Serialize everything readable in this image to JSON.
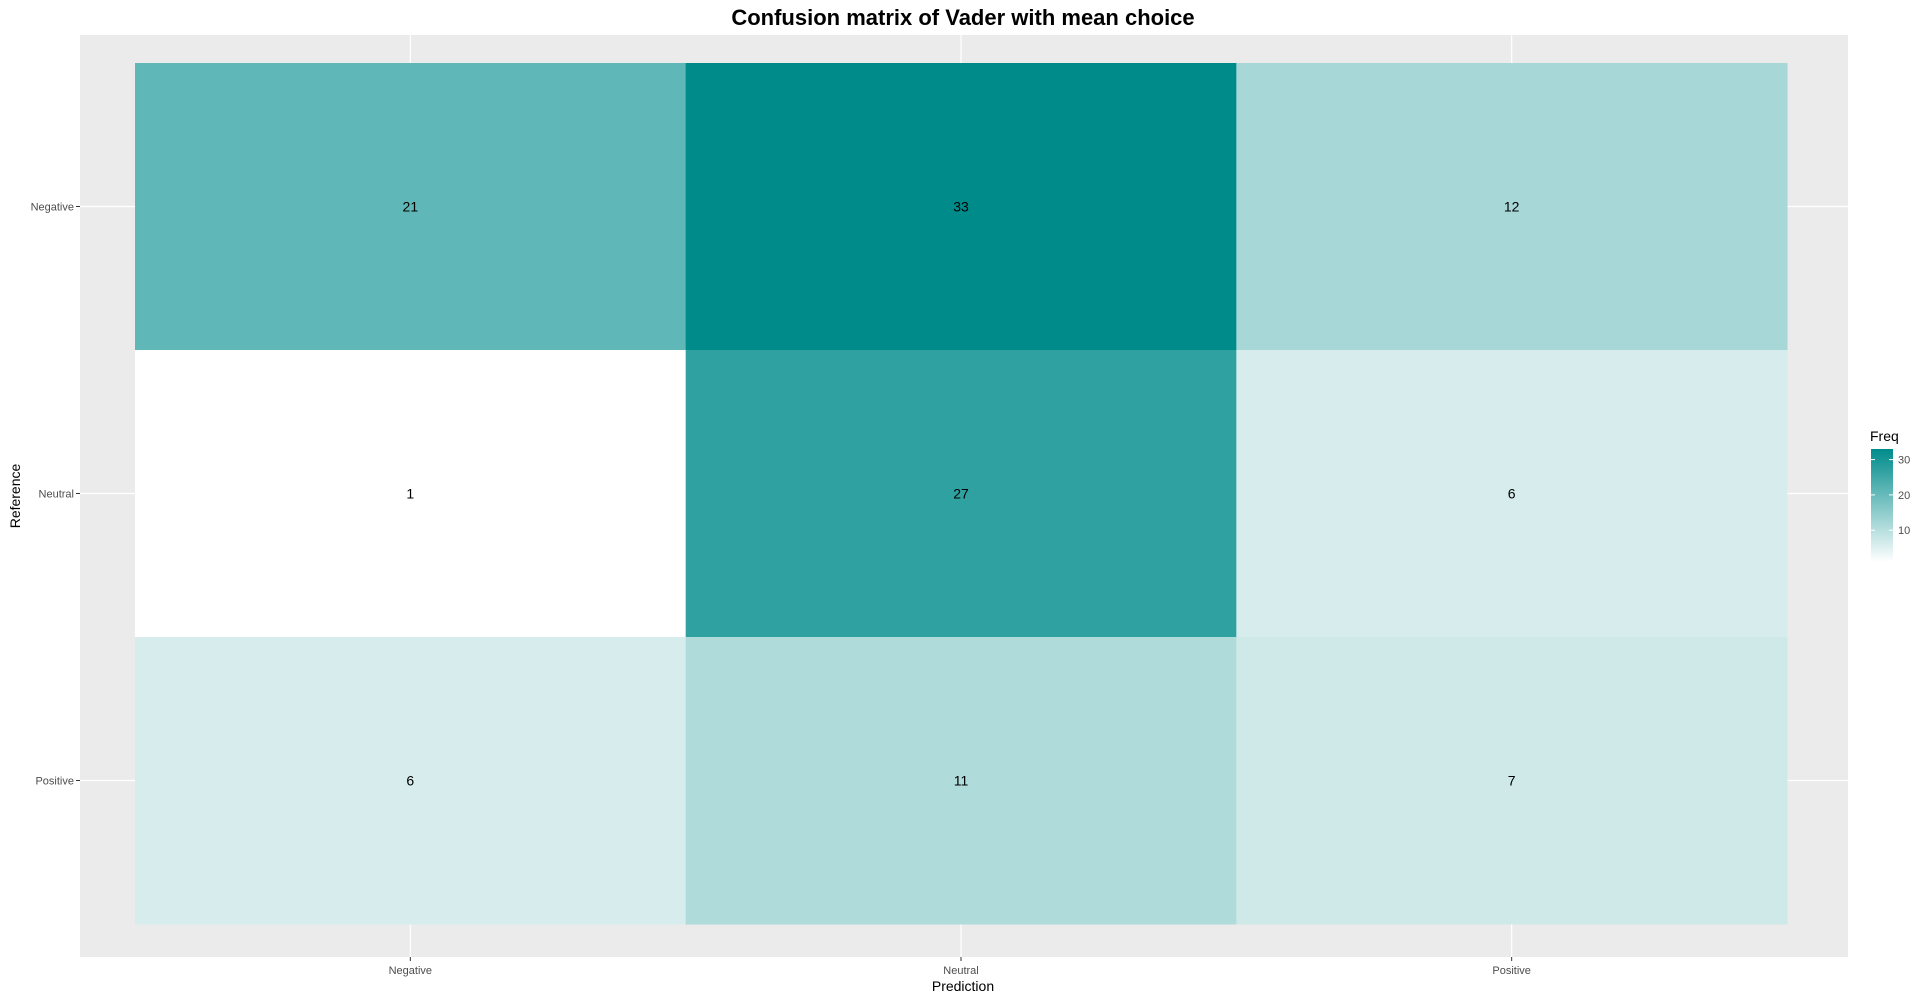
{
  "chart_data": {
    "type": "heatmap",
    "title": "Confusion matrix of Vader with mean choice",
    "xlabel": "Prediction",
    "ylabel": "Reference",
    "x_categories": [
      "Negative",
      "Neutral",
      "Positive"
    ],
    "y_categories": [
      "Negative",
      "Neutral",
      "Positive"
    ],
    "cells": [
      {
        "x": "Negative",
        "y": "Negative",
        "value": 21
      },
      {
        "x": "Neutral",
        "y": "Negative",
        "value": 33
      },
      {
        "x": "Positive",
        "y": "Negative",
        "value": 12
      },
      {
        "x": "Negative",
        "y": "Neutral",
        "value": 1
      },
      {
        "x": "Neutral",
        "y": "Neutral",
        "value": 27
      },
      {
        "x": "Positive",
        "y": "Neutral",
        "value": 6
      },
      {
        "x": "Negative",
        "y": "Positive",
        "value": 6
      },
      {
        "x": "Neutral",
        "y": "Positive",
        "value": 11
      },
      {
        "x": "Positive",
        "y": "Positive",
        "value": 7
      }
    ],
    "legend": {
      "title": "Freq",
      "ticks": [
        10,
        20,
        30
      ],
      "min": 1,
      "max": 33,
      "placement": "right"
    },
    "colors": {
      "low": "#ffffff",
      "high": "#008b8b",
      "panel_background": "#ebebeb",
      "grid": "#ffffff"
    },
    "grid": true
  }
}
